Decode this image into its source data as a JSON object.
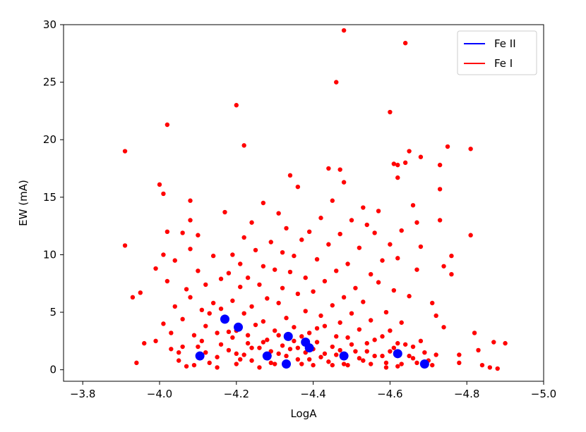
{
  "chart_data": {
    "type": "scatter",
    "xlabel": "LogA",
    "ylabel": "EW (mA)",
    "xlim": [
      -3.75,
      -5.0
    ],
    "ylim": [
      -1,
      30
    ],
    "x_ticks": [
      -3.8,
      -4.0,
      -4.2,
      -4.4,
      -4.6,
      -4.8,
      -5.0
    ],
    "x_tick_labels": [
      "−3.8",
      "−4.0",
      "−4.2",
      "−4.4",
      "−4.6",
      "−4.8",
      "−5.0"
    ],
    "y_ticks": [
      0,
      5,
      10,
      15,
      20,
      25,
      30
    ],
    "y_tick_labels": [
      "0",
      "5",
      "10",
      "15",
      "20",
      "25",
      "30"
    ],
    "grid": false,
    "legend_position": "top-right",
    "legend": [
      {
        "label": "Fe II",
        "color": "#0000ff"
      },
      {
        "label": "Fe I",
        "color": "#ff0000"
      }
    ],
    "series": [
      {
        "name": "Fe II",
        "color": "#0000ff",
        "points": [
          [
            -4.105,
            1.2
          ],
          [
            -4.17,
            4.4
          ],
          [
            -4.205,
            3.7
          ],
          [
            -4.28,
            1.2
          ],
          [
            -4.33,
            0.5
          ],
          [
            -4.335,
            2.9
          ],
          [
            -4.38,
            2.4
          ],
          [
            -4.39,
            1.9
          ],
          [
            -4.48,
            1.2
          ],
          [
            -4.62,
            1.4
          ],
          [
            -4.69,
            0.5
          ]
        ]
      },
      {
        "name": "Fe I",
        "color": "#ff0000",
        "points": [
          [
            -3.91,
            19.0
          ],
          [
            -3.91,
            10.8
          ],
          [
            -3.93,
            6.3
          ],
          [
            -3.94,
            0.6
          ],
          [
            -3.95,
            6.7
          ],
          [
            -3.96,
            2.3
          ],
          [
            -3.99,
            8.8
          ],
          [
            -3.99,
            2.5
          ],
          [
            -4.0,
            16.1
          ],
          [
            -4.01,
            15.3
          ],
          [
            -4.01,
            10.0
          ],
          [
            -4.01,
            4.0
          ],
          [
            -4.02,
            21.3
          ],
          [
            -4.02,
            12.0
          ],
          [
            -4.02,
            7.7
          ],
          [
            -4.03,
            3.2
          ],
          [
            -4.03,
            1.8
          ],
          [
            -4.04,
            9.5
          ],
          [
            -4.04,
            5.5
          ],
          [
            -4.05,
            0.8
          ],
          [
            -4.06,
            11.9
          ],
          [
            -4.06,
            4.4
          ],
          [
            -4.06,
            2.0
          ],
          [
            -4.07,
            7.0
          ],
          [
            -4.08,
            14.7
          ],
          [
            -4.08,
            13.0
          ],
          [
            -4.08,
            10.5
          ],
          [
            -4.08,
            6.3
          ],
          [
            -4.09,
            3.0
          ],
          [
            -4.09,
            0.4
          ],
          [
            -4.1,
            11.7
          ],
          [
            -4.1,
            8.6
          ],
          [
            -4.11,
            5.2
          ],
          [
            -4.11,
            2.5
          ],
          [
            -4.12,
            7.4
          ],
          [
            -4.12,
            3.8
          ],
          [
            -4.12,
            1.5
          ],
          [
            -4.13,
            0.6
          ],
          [
            -4.14,
            9.9
          ],
          [
            -4.14,
            5.8
          ],
          [
            -4.15,
            3.2
          ],
          [
            -4.15,
            1.1
          ],
          [
            -4.16,
            7.9
          ],
          [
            -4.16,
            2.2
          ],
          [
            -4.17,
            13.7
          ],
          [
            -4.17,
            4.6
          ],
          [
            -4.18,
            8.4
          ],
          [
            -4.18,
            1.7
          ],
          [
            -4.19,
            10.0
          ],
          [
            -4.19,
            6.0
          ],
          [
            -4.19,
            2.8
          ],
          [
            -4.2,
            23.0
          ],
          [
            -4.2,
            3.4
          ],
          [
            -4.2,
            0.5
          ],
          [
            -4.21,
            9.2
          ],
          [
            -4.21,
            7.2
          ],
          [
            -4.22,
            19.5
          ],
          [
            -4.22,
            11.5
          ],
          [
            -4.22,
            4.9
          ],
          [
            -4.22,
            1.3
          ],
          [
            -4.23,
            8.0
          ],
          [
            -4.23,
            2.3
          ],
          [
            -4.24,
            12.8
          ],
          [
            -4.24,
            5.5
          ],
          [
            -4.24,
            0.8
          ],
          [
            -4.25,
            10.4
          ],
          [
            -4.25,
            3.9
          ],
          [
            -4.26,
            7.4
          ],
          [
            -4.26,
            1.9
          ],
          [
            -4.27,
            14.5
          ],
          [
            -4.27,
            9.0
          ],
          [
            -4.27,
            4.2
          ],
          [
            -4.28,
            6.2
          ],
          [
            -4.28,
            2.6
          ],
          [
            -4.29,
            11.1
          ],
          [
            -4.29,
            0.6
          ],
          [
            -4.3,
            8.7
          ],
          [
            -4.3,
            3.4
          ],
          [
            -4.31,
            13.6
          ],
          [
            -4.31,
            5.8
          ],
          [
            -4.31,
            1.4
          ],
          [
            -4.32,
            10.2
          ],
          [
            -4.32,
            7.1
          ],
          [
            -4.32,
            2.1
          ],
          [
            -4.33,
            12.3
          ],
          [
            -4.33,
            4.5
          ],
          [
            -4.33,
            0.3
          ],
          [
            -4.34,
            16.9
          ],
          [
            -4.34,
            8.5
          ],
          [
            -4.34,
            1.8
          ],
          [
            -4.35,
            9.9
          ],
          [
            -4.35,
            3.7
          ],
          [
            -4.36,
            15.9
          ],
          [
            -4.36,
            6.6
          ],
          [
            -4.36,
            0.9
          ],
          [
            -4.37,
            11.3
          ],
          [
            -4.37,
            2.9
          ],
          [
            -4.38,
            8.0
          ],
          [
            -4.38,
            5.1
          ],
          [
            -4.38,
            1.5
          ],
          [
            -4.39,
            12.0
          ],
          [
            -4.39,
            3.2
          ],
          [
            -4.4,
            6.8
          ],
          [
            -4.4,
            0.4
          ],
          [
            -4.41,
            9.6
          ],
          [
            -4.41,
            2.4
          ],
          [
            -4.42,
            13.2
          ],
          [
            -4.42,
            4.7
          ],
          [
            -4.42,
            1.1
          ],
          [
            -4.43,
            7.7
          ],
          [
            -4.43,
            3.8
          ],
          [
            -4.44,
            17.5
          ],
          [
            -4.44,
            10.9
          ],
          [
            -4.44,
            0.7
          ],
          [
            -4.45,
            14.7
          ],
          [
            -4.45,
            5.6
          ],
          [
            -4.45,
            2.0
          ],
          [
            -4.46,
            25.0
          ],
          [
            -4.46,
            8.6
          ],
          [
            -4.46,
            1.3
          ],
          [
            -4.47,
            17.4
          ],
          [
            -4.47,
            11.8
          ],
          [
            -4.47,
            4.1
          ],
          [
            -4.48,
            29.5
          ],
          [
            -4.48,
            16.3
          ],
          [
            -4.48,
            6.3
          ],
          [
            -4.48,
            0.5
          ],
          [
            -4.49,
            9.2
          ],
          [
            -4.49,
            2.8
          ],
          [
            -4.5,
            13.0
          ],
          [
            -4.5,
            4.9
          ],
          [
            -4.51,
            7.1
          ],
          [
            -4.51,
            1.6
          ],
          [
            -4.52,
            10.6
          ],
          [
            -4.52,
            3.5
          ],
          [
            -4.53,
            14.1
          ],
          [
            -4.53,
            5.9
          ],
          [
            -4.53,
            0.8
          ],
          [
            -4.54,
            12.6
          ],
          [
            -4.54,
            2.3
          ],
          [
            -4.55,
            8.3
          ],
          [
            -4.55,
            4.3
          ],
          [
            -4.56,
            11.9
          ],
          [
            -4.56,
            1.2
          ],
          [
            -4.57,
            13.8
          ],
          [
            -4.57,
            7.6
          ],
          [
            -4.58,
            9.5
          ],
          [
            -4.58,
            2.9
          ],
          [
            -4.59,
            5.0
          ],
          [
            -4.59,
            0.6
          ],
          [
            -4.6,
            22.4
          ],
          [
            -4.6,
            10.9
          ],
          [
            -4.6,
            3.4
          ],
          [
            -4.61,
            17.9
          ],
          [
            -4.61,
            6.9
          ],
          [
            -4.61,
            1.9
          ],
          [
            -4.62,
            17.8
          ],
          [
            -4.62,
            16.7
          ],
          [
            -4.62,
            9.7
          ],
          [
            -4.62,
            0.3
          ],
          [
            -4.63,
            12.1
          ],
          [
            -4.63,
            4.1
          ],
          [
            -4.64,
            18.0
          ],
          [
            -4.64,
            28.4
          ],
          [
            -4.64,
            2.2
          ],
          [
            -4.65,
            19.0
          ],
          [
            -4.65,
            6.4
          ],
          [
            -4.66,
            14.3
          ],
          [
            -4.66,
            1.0
          ],
          [
            -4.67,
            12.8
          ],
          [
            -4.67,
            8.7
          ],
          [
            -4.68,
            18.5
          ],
          [
            -4.68,
            10.7
          ],
          [
            -4.68,
            2.5
          ],
          [
            -4.7,
            0.8
          ],
          [
            -4.71,
            5.8
          ],
          [
            -4.72,
            4.7
          ],
          [
            -4.73,
            17.8
          ],
          [
            -4.73,
            15.7
          ],
          [
            -4.73,
            13.0
          ],
          [
            -4.74,
            9.0
          ],
          [
            -4.74,
            3.7
          ],
          [
            -4.75,
            19.4
          ],
          [
            -4.76,
            8.3
          ],
          [
            -4.76,
            9.9
          ],
          [
            -4.78,
            1.3
          ],
          [
            -4.78,
            0.6
          ],
          [
            -4.81,
            19.2
          ],
          [
            -4.81,
            11.7
          ],
          [
            -4.82,
            3.2
          ],
          [
            -4.83,
            1.7
          ],
          [
            -4.84,
            0.4
          ],
          [
            -4.86,
            0.2
          ],
          [
            -4.87,
            2.4
          ],
          [
            -4.88,
            0.1
          ],
          [
            -4.9,
            2.3
          ],
          [
            -4.05,
            1.5
          ],
          [
            -4.07,
            0.3
          ],
          [
            -4.1,
            2.0
          ],
          [
            -4.13,
            4.9
          ],
          [
            -4.15,
            0.2
          ],
          [
            -4.16,
            5.3
          ],
          [
            -4.18,
            3.3
          ],
          [
            -4.2,
            1.4
          ],
          [
            -4.21,
            0.9
          ],
          [
            -4.23,
            3.0
          ],
          [
            -4.24,
            1.9
          ],
          [
            -4.26,
            0.2
          ],
          [
            -4.27,
            2.4
          ],
          [
            -4.29,
            1.6
          ],
          [
            -4.3,
            0.5
          ],
          [
            -4.31,
            3.0
          ],
          [
            -4.33,
            1.2
          ],
          [
            -4.35,
            2.5
          ],
          [
            -4.36,
            1.9
          ],
          [
            -4.37,
            0.5
          ],
          [
            -4.39,
            0.9
          ],
          [
            -4.4,
            1.8
          ],
          [
            -4.41,
            3.6
          ],
          [
            -4.43,
            1.4
          ],
          [
            -4.45,
            0.4
          ],
          [
            -4.46,
            2.9
          ],
          [
            -4.47,
            1.7
          ],
          [
            -4.49,
            0.4
          ],
          [
            -4.5,
            2.2
          ],
          [
            -4.52,
            1.0
          ],
          [
            -4.54,
            1.6
          ],
          [
            -4.55,
            0.5
          ],
          [
            -4.56,
            2.6
          ],
          [
            -4.58,
            1.2
          ],
          [
            -4.59,
            0.2
          ],
          [
            -4.6,
            1.6
          ],
          [
            -4.62,
            2.3
          ],
          [
            -4.63,
            0.5
          ],
          [
            -4.65,
            1.2
          ],
          [
            -4.66,
            2.0
          ],
          [
            -4.67,
            0.6
          ],
          [
            -4.69,
            1.5
          ],
          [
            -4.71,
            0.4
          ],
          [
            -4.72,
            1.3
          ]
        ]
      }
    ]
  }
}
